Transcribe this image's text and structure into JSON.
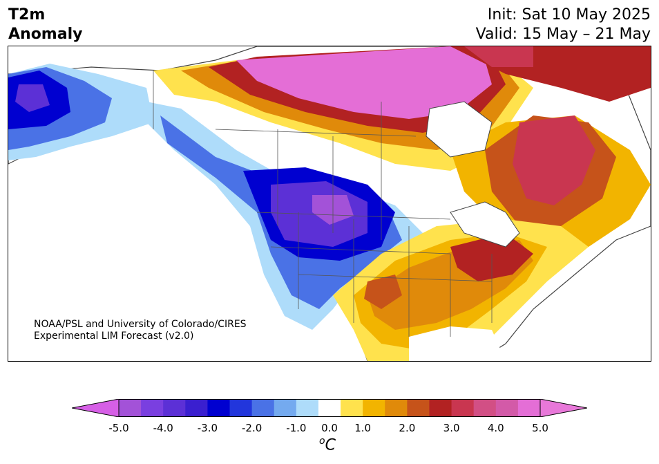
{
  "header": {
    "title_line1": "T2m",
    "title_line2": "Anomaly",
    "init_text": "Init: Sat 10 May 2025",
    "valid_text": "Valid: 15 May – 21 May"
  },
  "map": {
    "region": "North America",
    "credit_line1": "NOAA/PSL and University of Colorado/CIRES",
    "credit_line2": "Experimental LIM Forecast (v2.0)"
  },
  "colorbar": {
    "unit_base": "C",
    "unit_prefix": "o",
    "tick_labels": [
      "-5.0",
      "-4.0",
      "-3.0",
      "-2.0",
      "-1.0",
      "0.0",
      "1.0",
      "2.0",
      "3.0",
      "4.0",
      "5.0"
    ],
    "levels": [
      -5.0,
      -4.5,
      -4.0,
      -3.5,
      -3.0,
      -2.5,
      -2.0,
      -1.5,
      -1.0,
      -0.5,
      0.5,
      1.0,
      1.5,
      2.0,
      2.5,
      3.0,
      3.5,
      4.0,
      4.5,
      5.0
    ],
    "colors": [
      "#a352d8",
      "#7a3fe0",
      "#5c30d6",
      "#3a1fcf",
      "#0000d0",
      "#2236dc",
      "#4a72e6",
      "#74aaef",
      "#aedcfa",
      "#ffffff",
      "#ffe24d",
      "#f2b400",
      "#e08a0a",
      "#c6531a",
      "#b22222",
      "#c93650",
      "#d24f85",
      "#d35aa8",
      "#e46ed6"
    ],
    "extend_low_color": "#d65fe6",
    "extend_high_color": "#e878d9"
  }
}
